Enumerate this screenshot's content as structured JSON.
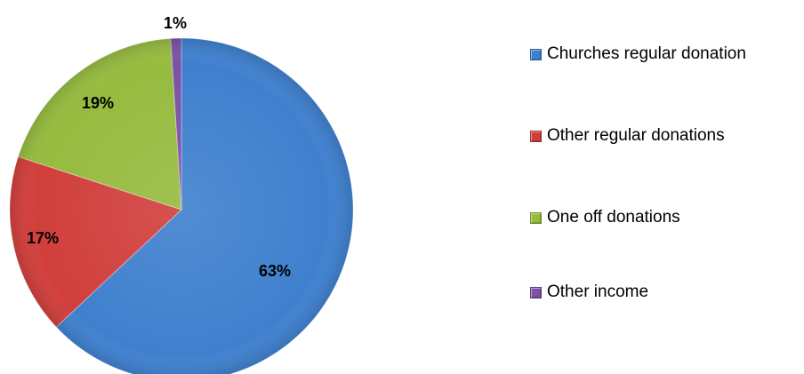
{
  "chart_data": {
    "type": "pie",
    "title": "",
    "slices": [
      {
        "name": "Churches regular donation",
        "value": 63,
        "label": "63%",
        "color": "#3F80CE"
      },
      {
        "name": "Other regular donations",
        "value": 17,
        "label": "17%",
        "color": "#D13F3C"
      },
      {
        "name": "One off donations",
        "value": 19,
        "label": "19%",
        "color": "#96BB3F"
      },
      {
        "name": "Other income",
        "value": 1,
        "label": "1%",
        "color": "#7A52A6"
      }
    ],
    "start_angle_deg": 0,
    "direction": "clockwise",
    "legend_position": "right"
  }
}
